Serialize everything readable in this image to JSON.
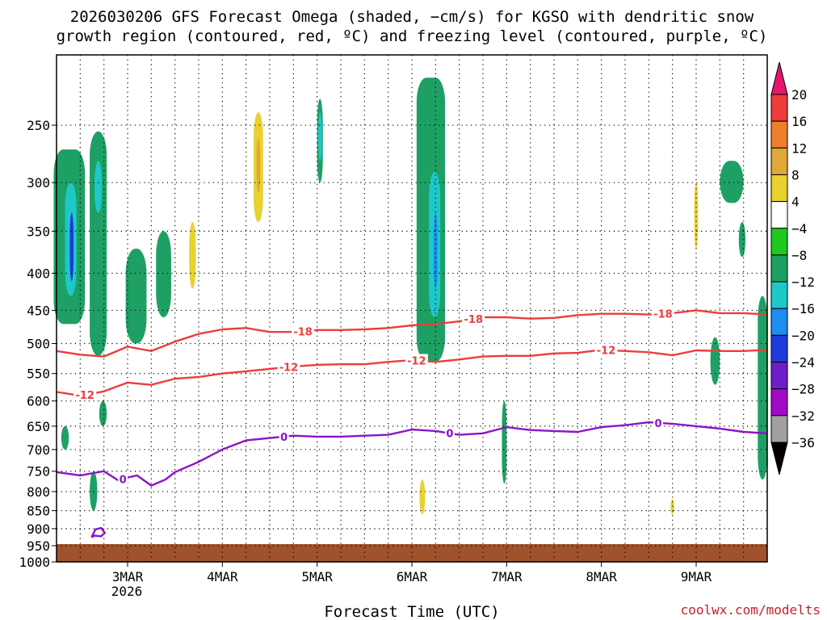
{
  "chart_data": {
    "type": "heatmap",
    "title_line1": "2026030206 GFS Forecast Omega (shaded, −cm/s) for KGSO with dendritic snow",
    "title_line2": "growth region (contoured, red, ºC) and freezing level (contoured, purple, ºC)",
    "xlabel": "Forecast Time (UTC)",
    "credit": "coolwx.com/modelts",
    "x_ticks": [
      "3MAR",
      "4MAR",
      "5MAR",
      "6MAR",
      "7MAR",
      "8MAR",
      "9MAR"
    ],
    "x_tick_sub": "2026",
    "x_range_days": [
      2.25,
      9.75
    ],
    "y_ticks": [
      250,
      300,
      350,
      400,
      450,
      500,
      550,
      600,
      650,
      700,
      750,
      800,
      850,
      900,
      950,
      1000
    ],
    "y_range": [
      200,
      1000
    ],
    "y_scale": "log",
    "grid": true,
    "colorbar": {
      "labels": [
        "20",
        "16",
        "12",
        "8",
        "4",
        "−4",
        "−8",
        "−12",
        "−16",
        "−20",
        "−24",
        "−28",
        "−32",
        "−36"
      ],
      "colors": [
        "#e8146e",
        "#ee3c3c",
        "#ee8030",
        "#e0a838",
        "#e8d232",
        "#ffffff",
        "#1ec81e",
        "#1ea064",
        "#1ec8c8",
        "#1e8cf0",
        "#1e3cdc",
        "#6e1ec8",
        "#a00ac8",
        "#a0a0a0",
        "#000000"
      ]
    },
    "contours": [
      {
        "name": "-18",
        "color": "#ee3c3c",
        "label": "-18",
        "label_days": [
          4.85,
          6.65,
          8.65
        ],
        "days": [
          2.25,
          2.5,
          2.75,
          3.0,
          3.25,
          3.5,
          3.75,
          4.0,
          4.25,
          4.5,
          4.75,
          5.0,
          5.25,
          5.5,
          5.75,
          6.0,
          6.25,
          6.5,
          6.75,
          7.0,
          7.25,
          7.5,
          7.75,
          8.0,
          8.25,
          8.5,
          8.75,
          9.0,
          9.25,
          9.5,
          9.75
        ],
        "hpa": [
          512,
          518,
          521,
          505,
          512,
          497,
          485,
          478,
          476,
          482,
          482,
          479,
          479,
          478,
          476,
          472,
          470,
          466,
          460,
          460,
          462,
          461,
          457,
          455,
          455,
          456,
          454,
          450,
          454,
          454,
          456
        ]
      },
      {
        "name": "-12",
        "color": "#ee3c3c",
        "label": "-12",
        "label_days": [
          2.55,
          4.7,
          6.05,
          8.05
        ],
        "days": [
          2.25,
          2.5,
          2.75,
          3.0,
          3.25,
          3.5,
          3.75,
          4.0,
          4.25,
          4.5,
          4.75,
          5.0,
          5.25,
          5.5,
          5.75,
          6.0,
          6.25,
          6.5,
          6.75,
          7.0,
          7.25,
          7.5,
          7.75,
          8.0,
          8.25,
          8.5,
          8.75,
          9.0,
          9.25,
          9.5,
          9.75
        ],
        "hpa": [
          583,
          590,
          582,
          566,
          570,
          559,
          556,
          550,
          546,
          542,
          538,
          535,
          534,
          534,
          530,
          527,
          530,
          526,
          521,
          520,
          520,
          516,
          515,
          510,
          512,
          514,
          519,
          511,
          512,
          512,
          510
        ]
      },
      {
        "name": "0",
        "color": "#8c14c8",
        "label": "0",
        "label_days": [
          2.95,
          4.65,
          6.4,
          8.6
        ],
        "days": [
          2.25,
          2.5,
          2.75,
          2.9,
          3.0,
          3.1,
          3.25,
          3.4,
          3.5,
          3.75,
          4.0,
          4.25,
          4.5,
          4.75,
          5.0,
          5.25,
          5.5,
          5.75,
          6.0,
          6.25,
          6.5,
          6.75,
          7.0,
          7.25,
          7.5,
          7.75,
          8.0,
          8.25,
          8.5,
          8.75,
          9.0,
          9.25,
          9.5,
          9.75
        ],
        "hpa": [
          752,
          760,
          750,
          772,
          765,
          760,
          785,
          770,
          752,
          728,
          700,
          680,
          675,
          670,
          672,
          672,
          670,
          668,
          657,
          660,
          668,
          665,
          652,
          658,
          660,
          662,
          652,
          648,
          642,
          645,
          650,
          655,
          662,
          665
        ]
      },
      {
        "name": "0-loop",
        "color": "#8c14c8",
        "label": "",
        "days": [
          2.62,
          2.66,
          2.72,
          2.76,
          2.72,
          2.65,
          2.62
        ],
        "hpa": [
          925,
          902,
          898,
          912,
          922,
          920,
          925
        ]
      }
    ],
    "omega_regions": [
      {
        "v": "-8",
        "d0": 2.22,
        "d1": 2.55,
        "p0": 270,
        "p1": 470
      },
      {
        "v": "-12",
        "d0": 2.34,
        "d1": 2.46,
        "p0": 300,
        "p1": 430
      },
      {
        "v": "-20",
        "d0": 2.39,
        "d1": 2.43,
        "p0": 330,
        "p1": 410
      },
      {
        "v": "-8",
        "d0": 2.6,
        "d1": 2.78,
        "p0": 255,
        "p1": 520
      },
      {
        "v": "-12",
        "d0": 2.65,
        "d1": 2.73,
        "p0": 280,
        "p1": 330
      },
      {
        "v": "-8",
        "d0": 2.98,
        "d1": 3.2,
        "p0": 370,
        "p1": 500
      },
      {
        "v": "-8",
        "d0": 3.3,
        "d1": 3.46,
        "p0": 350,
        "p1": 460
      },
      {
        "v": "4",
        "d0": 3.55,
        "d1": 3.85,
        "p0": 270,
        "p1": 500
      },
      {
        "v": "8",
        "d0": 3.65,
        "d1": 3.72,
        "p0": 340,
        "p1": 420
      },
      {
        "v": "4",
        "d0": 4.25,
        "d1": 4.55,
        "p0": 200,
        "p1": 470
      },
      {
        "v": "8",
        "d0": 4.33,
        "d1": 4.43,
        "p0": 240,
        "p1": 340
      },
      {
        "v": "12",
        "d0": 4.36,
        "d1": 4.4,
        "p0": 260,
        "p1": 310
      },
      {
        "v": "4",
        "d0": 4.55,
        "d1": 4.7,
        "p0": 330,
        "p1": 440
      },
      {
        "v": "-8",
        "d0": 5.0,
        "d1": 5.06,
        "p0": 230,
        "p1": 300
      },
      {
        "v": "-12",
        "d0": 5.01,
        "d1": 5.05,
        "p0": 240,
        "p1": 280
      },
      {
        "v": "4",
        "d0": 5.58,
        "d1": 5.72,
        "p0": 240,
        "p1": 350
      },
      {
        "v": "-8",
        "d0": 6.05,
        "d1": 6.35,
        "p0": 215,
        "p1": 530
      },
      {
        "v": "-12",
        "d0": 6.18,
        "d1": 6.3,
        "p0": 290,
        "p1": 460
      },
      {
        "v": "-16",
        "d0": 6.23,
        "d1": 6.27,
        "p0": 330,
        "p1": 420
      },
      {
        "v": "4",
        "d0": 5.98,
        "d1": 6.3,
        "p0": 700,
        "p1": 870
      },
      {
        "v": "8",
        "d0": 6.08,
        "d1": 6.14,
        "p0": 770,
        "p1": 860
      },
      {
        "v": "4",
        "d0": 6.35,
        "d1": 6.55,
        "p0": 680,
        "p1": 800
      },
      {
        "v": "-8",
        "d0": 6.95,
        "d1": 7.0,
        "p0": 600,
        "p1": 780
      },
      {
        "v": "4",
        "d0": 7.7,
        "d1": 7.9,
        "p0": 390,
        "p1": 480
      },
      {
        "v": "4",
        "d0": 8.6,
        "d1": 8.72,
        "p0": 260,
        "p1": 330
      },
      {
        "v": "4",
        "d0": 8.85,
        "d1": 9.1,
        "p0": 280,
        "p1": 400
      },
      {
        "v": "8",
        "d0": 8.98,
        "d1": 9.02,
        "p0": 300,
        "p1": 370
      },
      {
        "v": "-8",
        "d0": 9.25,
        "d1": 9.5,
        "p0": 280,
        "p1": 320
      },
      {
        "v": "-8",
        "d0": 9.45,
        "d1": 9.52,
        "p0": 340,
        "p1": 380
      },
      {
        "v": "-8",
        "d0": 9.15,
        "d1": 9.25,
        "p0": 490,
        "p1": 570
      },
      {
        "v": "-8",
        "d0": 9.65,
        "d1": 9.75,
        "p0": 430,
        "p1": 770
      },
      {
        "v": "4",
        "d0": 8.35,
        "d1": 8.55,
        "p0": 750,
        "p1": 870
      },
      {
        "v": "4",
        "d0": 8.68,
        "d1": 8.82,
        "p0": 770,
        "p1": 870
      },
      {
        "v": "8",
        "d0": 8.73,
        "d1": 8.77,
        "p0": 820,
        "p1": 860
      },
      {
        "v": "4",
        "d0": 7.8,
        "d1": 7.9,
        "p0": 880,
        "p1": 950
      },
      {
        "v": "-8",
        "d0": 2.3,
        "d1": 2.38,
        "p0": 650,
        "p1": 700
      },
      {
        "v": "-8",
        "d0": 2.7,
        "d1": 2.78,
        "p0": 600,
        "p1": 650
      },
      {
        "v": "-8",
        "d0": 2.6,
        "d1": 2.68,
        "p0": 750,
        "p1": 850
      },
      {
        "v": "4",
        "d0": 2.85,
        "d1": 2.95,
        "p0": 700,
        "p1": 800
      }
    ]
  }
}
